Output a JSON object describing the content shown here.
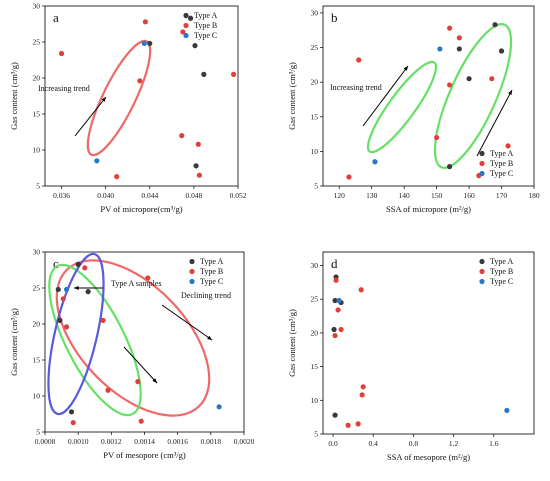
{
  "colors": {
    "Type A": "#3a3a3a",
    "Type B": "#e0403a",
    "Type C": "#2878c8",
    "ellipse_red": "#ee6a6a",
    "ellipse_green": "#66e066",
    "ellipse_blue": "#5a5adc"
  },
  "chart_data": [
    {
      "type": "scatter",
      "panel": "a",
      "xlabel": "PV of micropore(cm³/g)",
      "ylabel": "Gas content (cm³/g)",
      "xlim": [
        0.0345,
        0.052
      ],
      "ylim": [
        5,
        30
      ],
      "xticks": [
        "0.036",
        "0.040",
        "0.044",
        "0.048",
        "0.052"
      ],
      "xtick_values": [
        0.036,
        0.04,
        0.044,
        0.048,
        0.052
      ],
      "yticks": [
        "5",
        "10",
        "15",
        "20",
        "25",
        "30"
      ],
      "ytick_values": [
        5,
        10,
        15,
        20,
        25,
        30
      ],
      "legend": [
        "Type A",
        "Type B",
        "Type C"
      ],
      "legend_position": "top-right",
      "annotations": [
        "Increasing trend"
      ],
      "series": [
        {
          "name": "Type A",
          "points": [
            [
              0.044,
              24.8
            ],
            [
              0.0477,
              28.3
            ],
            [
              0.0481,
              24.5
            ],
            [
              0.0489,
              20.5
            ],
            [
              0.0482,
              7.8
            ]
          ]
        },
        {
          "name": "Type B",
          "points": [
            [
              0.036,
              23.4
            ],
            [
              0.0436,
              27.8
            ],
            [
              0.0431,
              19.6
            ],
            [
              0.047,
              26.4
            ],
            [
              0.0516,
              20.5
            ],
            [
              0.0469,
              12.0
            ],
            [
              0.0484,
              10.8
            ],
            [
              0.0485,
              6.5
            ],
            [
              0.041,
              6.3
            ]
          ]
        },
        {
          "name": "Type C",
          "points": [
            [
              0.0435,
              24.8
            ],
            [
              0.0392,
              8.5
            ]
          ]
        }
      ]
    },
    {
      "type": "scatter",
      "panel": "b",
      "xlabel": "SSA of micropore (m²/g)",
      "ylabel": "Gas content (cm³/g)",
      "xlim": [
        115,
        180
      ],
      "ylim": [
        5,
        31
      ],
      "xticks": [
        "120",
        "130",
        "140",
        "150",
        "160",
        "170",
        "180"
      ],
      "xtick_values": [
        120,
        130,
        140,
        150,
        160,
        170,
        180
      ],
      "yticks": [
        "5",
        "10",
        "15",
        "20",
        "25",
        "30"
      ],
      "ytick_values": [
        5,
        10,
        15,
        20,
        25,
        30
      ],
      "legend": [
        "Type A",
        "Type B",
        "Type C"
      ],
      "legend_position": "bottom-right",
      "annotations": [
        "Increasing trend"
      ],
      "series": [
        {
          "name": "Type A",
          "points": [
            [
              157,
              24.8
            ],
            [
              168,
              28.3
            ],
            [
              170,
              24.5
            ],
            [
              160,
              20.5
            ],
            [
              154,
              7.8
            ]
          ]
        },
        {
          "name": "Type B",
          "points": [
            [
              126,
              23.2
            ],
            [
              154,
              27.8
            ],
            [
              157,
              26.4
            ],
            [
              154,
              19.6
            ],
            [
              167,
              20.5
            ],
            [
              150,
              12.0
            ],
            [
              172,
              10.8
            ],
            [
              163,
              6.5
            ],
            [
              123,
              6.3
            ]
          ]
        },
        {
          "name": "Type C",
          "points": [
            [
              151,
              24.8
            ],
            [
              131,
              8.5
            ]
          ]
        }
      ]
    },
    {
      "type": "scatter",
      "panel": "c",
      "xlabel": "PV of mesopore (cm³/g)",
      "ylabel": "Gas content (cm³/g)",
      "xlim": [
        0.0008,
        0.002
      ],
      "ylim": [
        5,
        30
      ],
      "xticks": [
        "0.0008",
        "0.0010",
        "0.0012",
        "0.0014",
        "0.0016",
        "0.0018",
        "0.0020"
      ],
      "xtick_values": [
        0.0008,
        0.001,
        0.0012,
        0.0014,
        0.0016,
        0.0018,
        0.002
      ],
      "yticks": [
        "5",
        "10",
        "15",
        "20",
        "25",
        "30"
      ],
      "ytick_values": [
        5,
        10,
        15,
        20,
        25,
        30
      ],
      "legend": [
        "Type A",
        "Type B",
        "Type C"
      ],
      "legend_position": "top-right",
      "annotations": [
        "Type A samples",
        "Declining trend"
      ],
      "series": [
        {
          "name": "Type A",
          "points": [
            [
              0.00088,
              24.8
            ],
            [
              0.00106,
              24.5
            ],
            [
              0.001,
              28.3
            ],
            [
              0.00089,
              20.5
            ],
            [
              0.00096,
              7.8
            ]
          ]
        },
        {
          "name": "Type B",
          "points": [
            [
              0.00091,
              23.5
            ],
            [
              0.00104,
              27.8
            ],
            [
              0.00142,
              26.4
            ],
            [
              0.00093,
              19.6
            ],
            [
              0.00115,
              20.5
            ],
            [
              0.00136,
              12.0
            ],
            [
              0.00118,
              10.8
            ],
            [
              0.00138,
              6.5
            ],
            [
              0.00097,
              6.3
            ]
          ]
        },
        {
          "name": "Type C",
          "points": [
            [
              0.00093,
              24.8
            ],
            [
              0.00185,
              8.5
            ]
          ]
        }
      ]
    },
    {
      "type": "scatter",
      "panel": "d",
      "xlabel": "SSA of mesopore (m²/g)",
      "ylabel": "Gas content (cm³/g)",
      "xlim": [
        -0.1,
        2.0
      ],
      "ylim": [
        5,
        32
      ],
      "xticks": [
        "0.0",
        "0.4",
        "0.8",
        "1.2",
        "1.6"
      ],
      "xtick_values": [
        0.0,
        0.4,
        0.8,
        1.2,
        1.6
      ],
      "yticks": [
        "5",
        "10",
        "15",
        "20",
        "25",
        "30"
      ],
      "ytick_values": [
        5,
        10,
        15,
        20,
        25,
        30
      ],
      "legend": [
        "Type A",
        "Type B",
        "Type C"
      ],
      "legend_position": "top-right",
      "annotations": [],
      "series": [
        {
          "name": "Type A",
          "points": [
            [
              0.03,
              28.3
            ],
            [
              0.02,
              24.8
            ],
            [
              0.08,
              24.5
            ],
            [
              0.01,
              20.5
            ],
            [
              0.02,
              7.8
            ]
          ]
        },
        {
          "name": "Type B",
          "points": [
            [
              0.03,
              27.8
            ],
            [
              0.28,
              26.4
            ],
            [
              0.05,
              23.4
            ],
            [
              0.08,
              20.5
            ],
            [
              0.02,
              19.6
            ],
            [
              0.3,
              12.0
            ],
            [
              0.29,
              10.8
            ],
            [
              0.25,
              6.5
            ],
            [
              0.15,
              6.3
            ]
          ]
        },
        {
          "name": "Type C",
          "points": [
            [
              0.06,
              24.8
            ],
            [
              1.73,
              8.5
            ]
          ]
        }
      ]
    }
  ]
}
